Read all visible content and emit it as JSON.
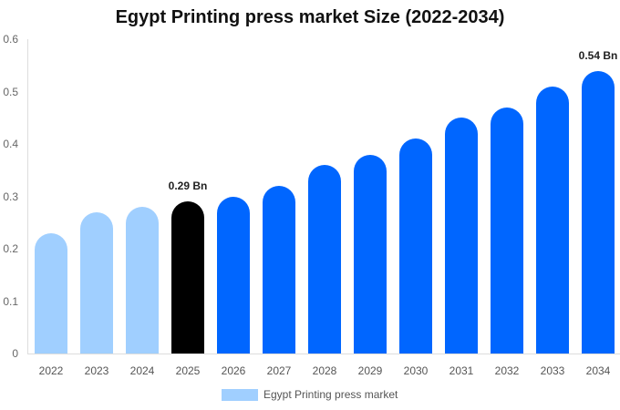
{
  "chart_data": {
    "type": "bar",
    "title": "Egypt Printing press market Size (2022-2034)",
    "xlabel": "",
    "ylabel": "",
    "ylim": [
      0,
      0.6
    ],
    "yticks": [
      "0",
      "0.1",
      "0.2",
      "0.3",
      "0.4",
      "0.5",
      "0.6"
    ],
    "grid": false,
    "legend_position": "bottom",
    "categories": [
      "2022",
      "2023",
      "2024",
      "2025",
      "2026",
      "2027",
      "2028",
      "2029",
      "2030",
      "2031",
      "2032",
      "2033",
      "2034"
    ],
    "series": [
      {
        "name": "Egypt Printing press market",
        "values": [
          0.23,
          0.27,
          0.28,
          0.29,
          0.3,
          0.32,
          0.36,
          0.38,
          0.41,
          0.45,
          0.47,
          0.51,
          0.54
        ]
      }
    ],
    "bar_colors": [
      "#a0cfff",
      "#a0cfff",
      "#a0cfff",
      "#000000",
      "#0066ff",
      "#0066ff",
      "#0066ff",
      "#0066ff",
      "#0066ff",
      "#0066ff",
      "#0066ff",
      "#0066ff",
      "#0066ff"
    ],
    "annotations": [
      {
        "category": "2025",
        "text": "0.29 Bn"
      },
      {
        "category": "2034",
        "text": "0.54 Bn"
      }
    ]
  },
  "legend": {
    "label": "Egypt Printing press market",
    "color": "#a0cfff"
  }
}
